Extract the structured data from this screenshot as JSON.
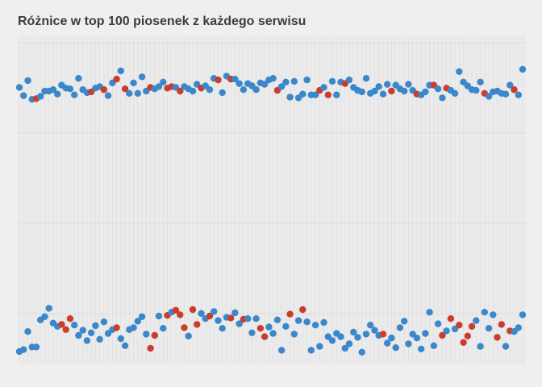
{
  "chart_data": {
    "type": "scatter",
    "title": "Różnice w top 100 piosenek z każdego serwisu",
    "xlabel": "",
    "ylabel": "",
    "grid": true,
    "n_columns": 120,
    "colors": {
      "blue": "#3a87cb",
      "red": "#cb3c2c"
    },
    "upper_band": [
      {
        "x": 1,
        "y": 0.52,
        "c": "blue"
      },
      {
        "x": 2,
        "y": 0.63,
        "c": "blue"
      },
      {
        "x": 3,
        "y": 0.43,
        "c": "blue"
      },
      {
        "x": 4,
        "y": 0.68,
        "c": "blue"
      },
      {
        "x": 5,
        "y": 0.67,
        "c": "red"
      },
      {
        "x": 6,
        "y": 0.64,
        "c": "blue"
      },
      {
        "x": 7,
        "y": 0.57,
        "c": "blue"
      },
      {
        "x": 8,
        "y": 0.57,
        "c": "blue"
      },
      {
        "x": 9,
        "y": 0.55,
        "c": "blue"
      },
      {
        "x": 10,
        "y": 0.61,
        "c": "blue"
      },
      {
        "x": 11,
        "y": 0.49,
        "c": "blue"
      },
      {
        "x": 12,
        "y": 0.53,
        "c": "blue"
      },
      {
        "x": 13,
        "y": 0.54,
        "c": "blue"
      },
      {
        "x": 14,
        "y": 0.62,
        "c": "blue"
      },
      {
        "x": 15,
        "y": 0.4,
        "c": "blue"
      },
      {
        "x": 16,
        "y": 0.55,
        "c": "blue"
      },
      {
        "x": 17,
        "y": 0.59,
        "c": "blue"
      },
      {
        "x": 18,
        "y": 0.58,
        "c": "red"
      },
      {
        "x": 19,
        "y": 0.53,
        "c": "blue"
      },
      {
        "x": 20,
        "y": 0.51,
        "c": "blue"
      },
      {
        "x": 21,
        "y": 0.55,
        "c": "red"
      },
      {
        "x": 22,
        "y": 0.63,
        "c": "blue"
      },
      {
        "x": 23,
        "y": 0.46,
        "c": "blue"
      },
      {
        "x": 24,
        "y": 0.41,
        "c": "red"
      },
      {
        "x": 25,
        "y": 0.3,
        "c": "blue"
      },
      {
        "x": 26,
        "y": 0.54,
        "c": "red"
      },
      {
        "x": 27,
        "y": 0.6,
        "c": "blue"
      },
      {
        "x": 28,
        "y": 0.46,
        "c": "blue"
      },
      {
        "x": 29,
        "y": 0.6,
        "c": "blue"
      },
      {
        "x": 30,
        "y": 0.38,
        "c": "blue"
      },
      {
        "x": 31,
        "y": 0.57,
        "c": "blue"
      },
      {
        "x": 32,
        "y": 0.52,
        "c": "red"
      },
      {
        "x": 33,
        "y": 0.54,
        "c": "blue"
      },
      {
        "x": 34,
        "y": 0.51,
        "c": "blue"
      },
      {
        "x": 35,
        "y": 0.45,
        "c": "blue"
      },
      {
        "x": 36,
        "y": 0.53,
        "c": "red"
      },
      {
        "x": 37,
        "y": 0.51,
        "c": "red"
      },
      {
        "x": 38,
        "y": 0.52,
        "c": "blue"
      },
      {
        "x": 39,
        "y": 0.57,
        "c": "red"
      },
      {
        "x": 40,
        "y": 0.51,
        "c": "blue"
      },
      {
        "x": 41,
        "y": 0.54,
        "c": "blue"
      },
      {
        "x": 42,
        "y": 0.57,
        "c": "blue"
      },
      {
        "x": 43,
        "y": 0.48,
        "c": "blue"
      },
      {
        "x": 44,
        "y": 0.53,
        "c": "red"
      },
      {
        "x": 45,
        "y": 0.5,
        "c": "blue"
      },
      {
        "x": 46,
        "y": 0.55,
        "c": "blue"
      },
      {
        "x": 47,
        "y": 0.4,
        "c": "blue"
      },
      {
        "x": 48,
        "y": 0.42,
        "c": "red"
      },
      {
        "x": 49,
        "y": 0.59,
        "c": "blue"
      },
      {
        "x": 50,
        "y": 0.37,
        "c": "blue"
      },
      {
        "x": 51,
        "y": 0.41,
        "c": "red"
      },
      {
        "x": 52,
        "y": 0.41,
        "c": "blue"
      },
      {
        "x": 53,
        "y": 0.47,
        "c": "blue"
      },
      {
        "x": 54,
        "y": 0.55,
        "c": "blue"
      },
      {
        "x": 55,
        "y": 0.47,
        "c": "blue"
      },
      {
        "x": 56,
        "y": 0.5,
        "c": "blue"
      },
      {
        "x": 57,
        "y": 0.55,
        "c": "blue"
      },
      {
        "x": 58,
        "y": 0.46,
        "c": "blue"
      },
      {
        "x": 59,
        "y": 0.48,
        "c": "blue"
      },
      {
        "x": 60,
        "y": 0.42,
        "c": "blue"
      },
      {
        "x": 61,
        "y": 0.4,
        "c": "blue"
      },
      {
        "x": 62,
        "y": 0.56,
        "c": "red"
      },
      {
        "x": 63,
        "y": 0.51,
        "c": "blue"
      },
      {
        "x": 64,
        "y": 0.45,
        "c": "blue"
      },
      {
        "x": 65,
        "y": 0.65,
        "c": "blue"
      },
      {
        "x": 66,
        "y": 0.44,
        "c": "blue"
      },
      {
        "x": 67,
        "y": 0.66,
        "c": "blue"
      },
      {
        "x": 68,
        "y": 0.61,
        "c": "blue"
      },
      {
        "x": 69,
        "y": 0.42,
        "c": "blue"
      },
      {
        "x": 70,
        "y": 0.62,
        "c": "blue"
      },
      {
        "x": 71,
        "y": 0.62,
        "c": "blue"
      },
      {
        "x": 72,
        "y": 0.56,
        "c": "red"
      },
      {
        "x": 73,
        "y": 0.52,
        "c": "blue"
      },
      {
        "x": 74,
        "y": 0.62,
        "c": "red"
      },
      {
        "x": 75,
        "y": 0.44,
        "c": "blue"
      },
      {
        "x": 76,
        "y": 0.62,
        "c": "blue"
      },
      {
        "x": 77,
        "y": 0.45,
        "c": "blue"
      },
      {
        "x": 78,
        "y": 0.47,
        "c": "red"
      },
      {
        "x": 79,
        "y": 0.42,
        "c": "blue"
      },
      {
        "x": 80,
        "y": 0.52,
        "c": "blue"
      },
      {
        "x": 81,
        "y": 0.56,
        "c": "blue"
      },
      {
        "x": 82,
        "y": 0.58,
        "c": "blue"
      },
      {
        "x": 83,
        "y": 0.4,
        "c": "blue"
      },
      {
        "x": 84,
        "y": 0.6,
        "c": "blue"
      },
      {
        "x": 85,
        "y": 0.57,
        "c": "blue"
      },
      {
        "x": 86,
        "y": 0.51,
        "c": "blue"
      },
      {
        "x": 87,
        "y": 0.61,
        "c": "blue"
      },
      {
        "x": 88,
        "y": 0.48,
        "c": "blue"
      },
      {
        "x": 89,
        "y": 0.57,
        "c": "red"
      },
      {
        "x": 90,
        "y": 0.49,
        "c": "blue"
      },
      {
        "x": 91,
        "y": 0.54,
        "c": "blue"
      },
      {
        "x": 92,
        "y": 0.57,
        "c": "blue"
      },
      {
        "x": 93,
        "y": 0.48,
        "c": "blue"
      },
      {
        "x": 94,
        "y": 0.56,
        "c": "blue"
      },
      {
        "x": 95,
        "y": 0.61,
        "c": "red"
      },
      {
        "x": 96,
        "y": 0.62,
        "c": "blue"
      },
      {
        "x": 97,
        "y": 0.58,
        "c": "blue"
      },
      {
        "x": 98,
        "y": 0.49,
        "c": "blue"
      },
      {
        "x": 99,
        "y": 0.49,
        "c": "red"
      },
      {
        "x": 100,
        "y": 0.54,
        "c": "blue"
      },
      {
        "x": 101,
        "y": 0.66,
        "c": "blue"
      },
      {
        "x": 102,
        "y": 0.53,
        "c": "red"
      },
      {
        "x": 103,
        "y": 0.56,
        "c": "blue"
      },
      {
        "x": 104,
        "y": 0.6,
        "c": "blue"
      },
      {
        "x": 105,
        "y": 0.31,
        "c": "blue"
      },
      {
        "x": 106,
        "y": 0.45,
        "c": "blue"
      },
      {
        "x": 107,
        "y": 0.5,
        "c": "blue"
      },
      {
        "x": 108,
        "y": 0.55,
        "c": "blue"
      },
      {
        "x": 109,
        "y": 0.56,
        "c": "blue"
      },
      {
        "x": 110,
        "y": 0.45,
        "c": "blue"
      },
      {
        "x": 111,
        "y": 0.6,
        "c": "red"
      },
      {
        "x": 112,
        "y": 0.64,
        "c": "blue"
      },
      {
        "x": 113,
        "y": 0.58,
        "c": "blue"
      },
      {
        "x": 114,
        "y": 0.57,
        "c": "blue"
      },
      {
        "x": 115,
        "y": 0.6,
        "c": "blue"
      },
      {
        "x": 116,
        "y": 0.61,
        "c": "blue"
      },
      {
        "x": 117,
        "y": 0.49,
        "c": "blue"
      },
      {
        "x": 118,
        "y": 0.55,
        "c": "red"
      },
      {
        "x": 119,
        "y": 0.62,
        "c": "blue"
      },
      {
        "x": 120,
        "y": 0.28,
        "c": "blue"
      }
    ],
    "lower_band": [
      {
        "x": 1,
        "y": 0.95,
        "c": "blue"
      },
      {
        "x": 2,
        "y": 0.92,
        "c": "blue"
      },
      {
        "x": 3,
        "y": 0.64,
        "c": "blue"
      },
      {
        "x": 4,
        "y": 0.88,
        "c": "blue"
      },
      {
        "x": 5,
        "y": 0.88,
        "c": "blue"
      },
      {
        "x": 6,
        "y": 0.46,
        "c": "blue"
      },
      {
        "x": 7,
        "y": 0.41,
        "c": "blue"
      },
      {
        "x": 8,
        "y": 0.28,
        "c": "blue"
      },
      {
        "x": 9,
        "y": 0.51,
        "c": "blue"
      },
      {
        "x": 10,
        "y": 0.56,
        "c": "blue"
      },
      {
        "x": 11,
        "y": 0.53,
        "c": "red"
      },
      {
        "x": 12,
        "y": 0.61,
        "c": "red"
      },
      {
        "x": 13,
        "y": 0.44,
        "c": "red"
      },
      {
        "x": 14,
        "y": 0.54,
        "c": "blue"
      },
      {
        "x": 15,
        "y": 0.7,
        "c": "blue"
      },
      {
        "x": 16,
        "y": 0.62,
        "c": "blue"
      },
      {
        "x": 17,
        "y": 0.78,
        "c": "blue"
      },
      {
        "x": 18,
        "y": 0.66,
        "c": "blue"
      },
      {
        "x": 19,
        "y": 0.55,
        "c": "blue"
      },
      {
        "x": 20,
        "y": 0.76,
        "c": "blue"
      },
      {
        "x": 21,
        "y": 0.49,
        "c": "blue"
      },
      {
        "x": 22,
        "y": 0.67,
        "c": "blue"
      },
      {
        "x": 23,
        "y": 0.61,
        "c": "blue"
      },
      {
        "x": 24,
        "y": 0.58,
        "c": "red"
      },
      {
        "x": 25,
        "y": 0.75,
        "c": "blue"
      },
      {
        "x": 26,
        "y": 0.86,
        "c": "blue"
      },
      {
        "x": 27,
        "y": 0.61,
        "c": "blue"
      },
      {
        "x": 28,
        "y": 0.58,
        "c": "blue"
      },
      {
        "x": 29,
        "y": 0.48,
        "c": "blue"
      },
      {
        "x": 30,
        "y": 0.41,
        "c": "blue"
      },
      {
        "x": 31,
        "y": 0.68,
        "c": "blue"
      },
      {
        "x": 32,
        "y": 0.9,
        "c": "red"
      },
      {
        "x": 33,
        "y": 0.7,
        "c": "red"
      },
      {
        "x": 34,
        "y": 0.4,
        "c": "blue"
      },
      {
        "x": 35,
        "y": 0.59,
        "c": "blue"
      },
      {
        "x": 36,
        "y": 0.39,
        "c": "red"
      },
      {
        "x": 37,
        "y": 0.34,
        "c": "blue"
      },
      {
        "x": 38,
        "y": 0.31,
        "c": "red"
      },
      {
        "x": 39,
        "y": 0.38,
        "c": "red"
      },
      {
        "x": 40,
        "y": 0.58,
        "c": "red"
      },
      {
        "x": 41,
        "y": 0.71,
        "c": "blue"
      },
      {
        "x": 42,
        "y": 0.3,
        "c": "red"
      },
      {
        "x": 43,
        "y": 0.53,
        "c": "red"
      },
      {
        "x": 44,
        "y": 0.36,
        "c": "blue"
      },
      {
        "x": 45,
        "y": 0.44,
        "c": "blue"
      },
      {
        "x": 46,
        "y": 0.4,
        "c": "red"
      },
      {
        "x": 47,
        "y": 0.33,
        "c": "blue"
      },
      {
        "x": 48,
        "y": 0.47,
        "c": "blue"
      },
      {
        "x": 49,
        "y": 0.59,
        "c": "blue"
      },
      {
        "x": 50,
        "y": 0.42,
        "c": "blue"
      },
      {
        "x": 51,
        "y": 0.43,
        "c": "red"
      },
      {
        "x": 52,
        "y": 0.35,
        "c": "blue"
      },
      {
        "x": 53,
        "y": 0.52,
        "c": "blue"
      },
      {
        "x": 54,
        "y": 0.45,
        "c": "red"
      },
      {
        "x": 55,
        "y": 0.44,
        "c": "blue"
      },
      {
        "x": 56,
        "y": 0.66,
        "c": "blue"
      },
      {
        "x": 57,
        "y": 0.44,
        "c": "blue"
      },
      {
        "x": 58,
        "y": 0.59,
        "c": "red"
      },
      {
        "x": 59,
        "y": 0.72,
        "c": "red"
      },
      {
        "x": 60,
        "y": 0.57,
        "c": "blue"
      },
      {
        "x": 61,
        "y": 0.67,
        "c": "blue"
      },
      {
        "x": 62,
        "y": 0.46,
        "c": "blue"
      },
      {
        "x": 63,
        "y": 0.93,
        "c": "blue"
      },
      {
        "x": 64,
        "y": 0.56,
        "c": "blue"
      },
      {
        "x": 65,
        "y": 0.37,
        "c": "red"
      },
      {
        "x": 66,
        "y": 0.68,
        "c": "blue"
      },
      {
        "x": 67,
        "y": 0.47,
        "c": "blue"
      },
      {
        "x": 68,
        "y": 0.3,
        "c": "red"
      },
      {
        "x": 69,
        "y": 0.49,
        "c": "blue"
      },
      {
        "x": 70,
        "y": 0.93,
        "c": "blue"
      },
      {
        "x": 71,
        "y": 0.54,
        "c": "blue"
      },
      {
        "x": 72,
        "y": 0.87,
        "c": "blue"
      },
      {
        "x": 73,
        "y": 0.5,
        "c": "blue"
      },
      {
        "x": 74,
        "y": 0.72,
        "c": "blue"
      },
      {
        "x": 75,
        "y": 0.78,
        "c": "blue"
      },
      {
        "x": 76,
        "y": 0.67,
        "c": "blue"
      },
      {
        "x": 77,
        "y": 0.72,
        "c": "blue"
      },
      {
        "x": 78,
        "y": 0.9,
        "c": "blue"
      },
      {
        "x": 79,
        "y": 0.83,
        "c": "blue"
      },
      {
        "x": 80,
        "y": 0.65,
        "c": "blue"
      },
      {
        "x": 81,
        "y": 0.73,
        "c": "blue"
      },
      {
        "x": 82,
        "y": 0.96,
        "c": "blue"
      },
      {
        "x": 83,
        "y": 0.68,
        "c": "blue"
      },
      {
        "x": 84,
        "y": 0.54,
        "c": "blue"
      },
      {
        "x": 85,
        "y": 0.62,
        "c": "blue"
      },
      {
        "x": 86,
        "y": 0.7,
        "c": "blue"
      },
      {
        "x": 87,
        "y": 0.68,
        "c": "red"
      },
      {
        "x": 88,
        "y": 0.82,
        "c": "blue"
      },
      {
        "x": 89,
        "y": 0.74,
        "c": "blue"
      },
      {
        "x": 90,
        "y": 0.89,
        "c": "blue"
      },
      {
        "x": 91,
        "y": 0.58,
        "c": "blue"
      },
      {
        "x": 92,
        "y": 0.48,
        "c": "blue"
      },
      {
        "x": 93,
        "y": 0.83,
        "c": "blue"
      },
      {
        "x": 94,
        "y": 0.68,
        "c": "blue"
      },
      {
        "x": 95,
        "y": 0.74,
        "c": "blue"
      },
      {
        "x": 96,
        "y": 0.91,
        "c": "blue"
      },
      {
        "x": 97,
        "y": 0.67,
        "c": "blue"
      },
      {
        "x": 98,
        "y": 0.34,
        "c": "blue"
      },
      {
        "x": 99,
        "y": 0.86,
        "c": "blue"
      },
      {
        "x": 100,
        "y": 0.52,
        "c": "blue"
      },
      {
        "x": 101,
        "y": 0.7,
        "c": "red"
      },
      {
        "x": 102,
        "y": 0.63,
        "c": "blue"
      },
      {
        "x": 103,
        "y": 0.44,
        "c": "red"
      },
      {
        "x": 104,
        "y": 0.6,
        "c": "blue"
      },
      {
        "x": 105,
        "y": 0.54,
        "c": "red"
      },
      {
        "x": 106,
        "y": 0.81,
        "c": "red"
      },
      {
        "x": 107,
        "y": 0.71,
        "c": "red"
      },
      {
        "x": 108,
        "y": 0.56,
        "c": "red"
      },
      {
        "x": 109,
        "y": 0.47,
        "c": "blue"
      },
      {
        "x": 110,
        "y": 0.87,
        "c": "blue"
      },
      {
        "x": 111,
        "y": 0.34,
        "c": "blue"
      },
      {
        "x": 112,
        "y": 0.59,
        "c": "blue"
      },
      {
        "x": 113,
        "y": 0.38,
        "c": "blue"
      },
      {
        "x": 114,
        "y": 0.73,
        "c": "red"
      },
      {
        "x": 115,
        "y": 0.53,
        "c": "red"
      },
      {
        "x": 116,
        "y": 0.87,
        "c": "blue"
      },
      {
        "x": 117,
        "y": 0.63,
        "c": "red"
      },
      {
        "x": 118,
        "y": 0.64,
        "c": "blue"
      },
      {
        "x": 119,
        "y": 0.58,
        "c": "blue"
      },
      {
        "x": 120,
        "y": 0.38,
        "c": "blue"
      }
    ]
  }
}
